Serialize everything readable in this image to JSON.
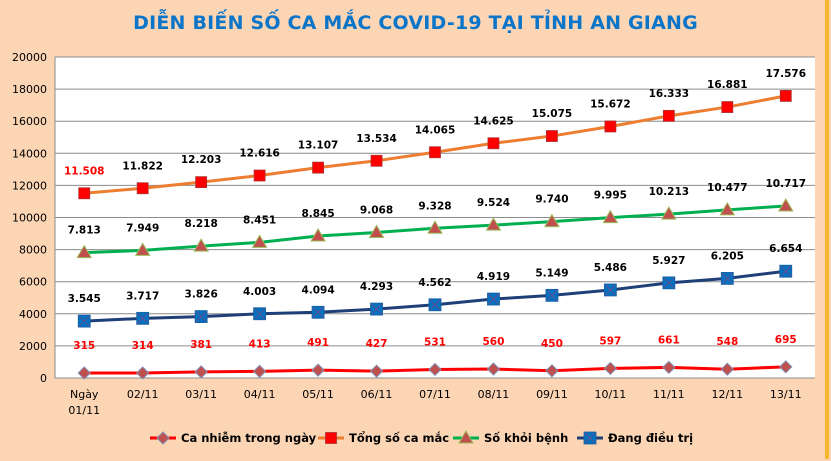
{
  "chart_data": {
    "type": "line",
    "title": "DIỄN BIẾN SỐ CA MẮC COVID-19 TẠI TỈNH AN GIANG",
    "categories": [
      "Ngày 01/11",
      "02/11",
      "03/11",
      "04/11",
      "05/11",
      "06/11",
      "07/11",
      "08/11",
      "09/11",
      "10/11",
      "11/11",
      "12/11",
      "13/11"
    ],
    "ylim": [
      0,
      20000
    ],
    "yticks": [
      0,
      2000,
      4000,
      6000,
      8000,
      10000,
      12000,
      14000,
      16000,
      18000,
      20000
    ],
    "grid": true,
    "legend_position": "bottom",
    "series": [
      {
        "name": "Ca nhiễm trong ngày",
        "color": "#ff0000",
        "marker": "diamond",
        "marker_color": "#c0504d",
        "label_color": "#ff0000",
        "values": [
          315,
          314,
          381,
          413,
          491,
          427,
          531,
          560,
          450,
          597,
          661,
          548,
          695
        ],
        "labels": [
          "315",
          "314",
          "381",
          "413",
          "491",
          "427",
          "531",
          "560",
          "450",
          "597",
          "661",
          "548",
          "695"
        ]
      },
      {
        "name": "Tổng số ca mắc",
        "color": "#ed7d31",
        "marker": "square",
        "marker_color": "#ff0000",
        "label_color": "#000000",
        "first_label_color": "#ff0000",
        "values": [
          11508,
          11822,
          12203,
          12616,
          13107,
          13534,
          14065,
          14625,
          15075,
          15672,
          16333,
          16881,
          17576
        ],
        "labels": [
          "11.508",
          "11.822",
          "12.203",
          "12.616",
          "13.107",
          "13.534",
          "14.065",
          "14.625",
          "15.075",
          "15.672",
          "16.333",
          "16.881",
          "17.576"
        ]
      },
      {
        "name": "Số khỏi bệnh",
        "color": "#00b050",
        "marker": "triangle",
        "marker_color": "#c0504d",
        "label_color": "#000000",
        "values": [
          7813,
          7949,
          8218,
          8451,
          8845,
          9068,
          9328,
          9524,
          9740,
          9995,
          10213,
          10477,
          10717
        ],
        "labels": [
          "7.813",
          "7.949",
          "8.218",
          "8.451",
          "8.845",
          "9.068",
          "9.328",
          "9.524",
          "9.740",
          "9.995",
          "10.213",
          "10.477",
          "10.717"
        ]
      },
      {
        "name": "Đang điều trị",
        "color": "#1f3f78",
        "marker": "square-x",
        "marker_color": "#0070c0",
        "label_color": "#000000",
        "values": [
          3545,
          3717,
          3826,
          4003,
          4094,
          4293,
          4562,
          4919,
          5149,
          5486,
          5927,
          6205,
          6654
        ],
        "labels": [
          "3.545",
          "3.717",
          "3.826",
          "4.003",
          "4.094",
          "4.293",
          "4.562",
          "4.919",
          "5.149",
          "5.486",
          "5.927",
          "6.205",
          "6.654"
        ]
      }
    ]
  }
}
